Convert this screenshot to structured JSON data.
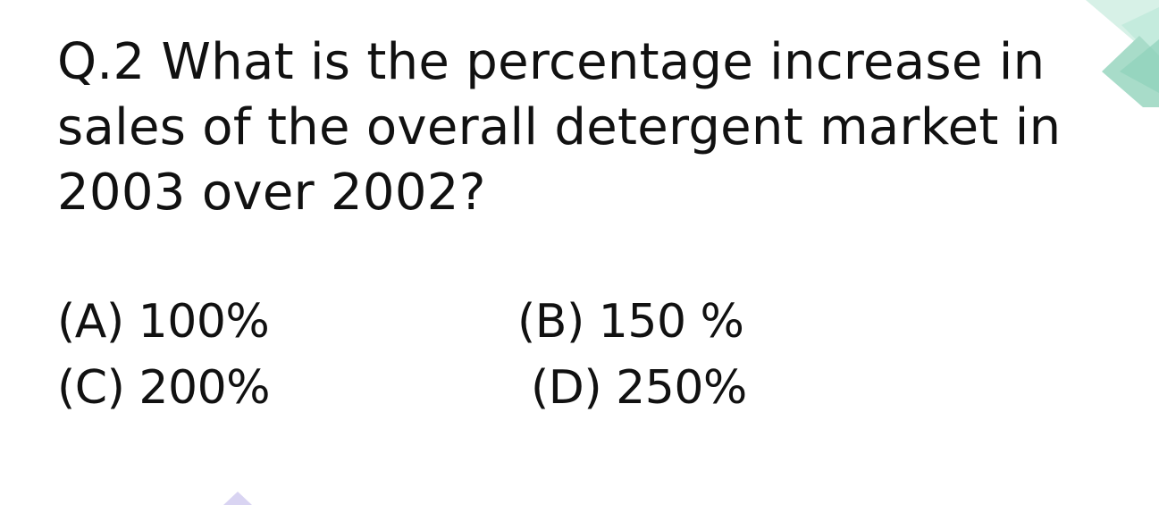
{
  "question": {
    "lines": [
      "Q.2 What is the percentage increase in",
      "sales of the overall detergent market in",
      "2003 over 2002?"
    ]
  },
  "options": {
    "a": "(A) 100%",
    "b": "(B) 150 %",
    "c": "(C) 200%",
    "d": "(D) 250%"
  },
  "colors": {
    "text": "#111111",
    "background": "#ffffff",
    "accent_mint": "#cfeee3",
    "accent_teal": "#9ed9c6",
    "accent_lavender": "#d9d4f2"
  }
}
